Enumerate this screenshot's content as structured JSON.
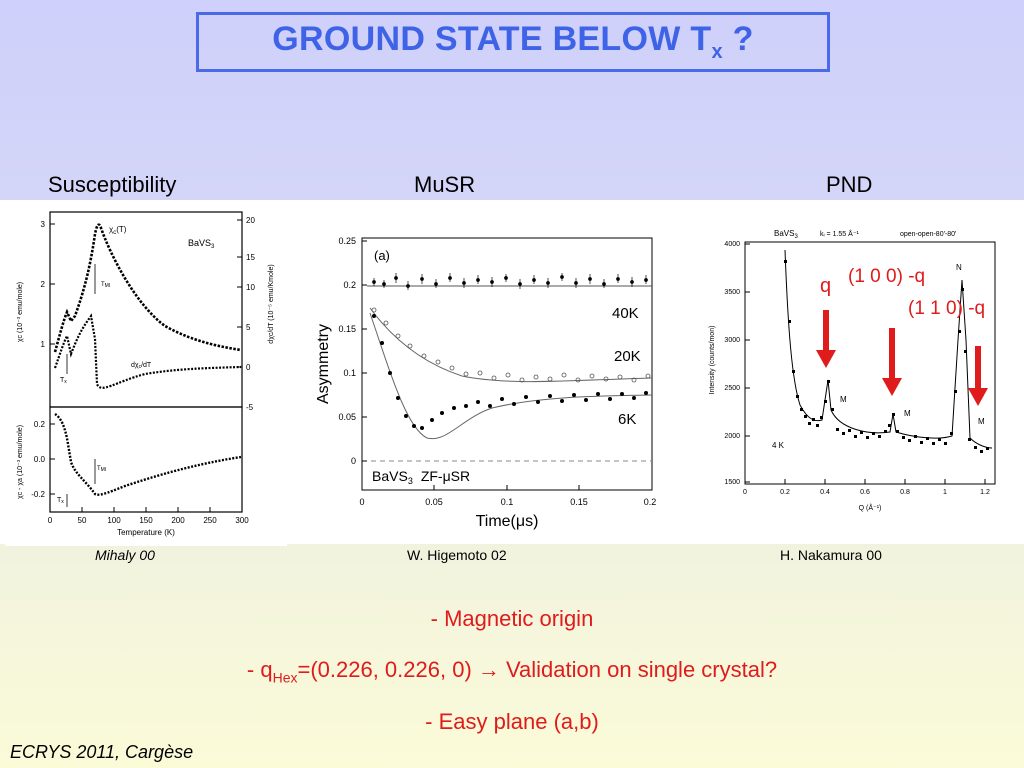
{
  "slide": {
    "title_main": "GROUND STATE BELOW T",
    "title_sub": "x",
    "title_end": " ?",
    "footer": "ECRYS 2011, Cargèse"
  },
  "columns": [
    {
      "heading": "Susceptibility",
      "credit": "Mihaly 00"
    },
    {
      "heading": "MuSR",
      "credit": "W. Higemoto 02"
    },
    {
      "heading": "PND",
      "credit": "H. Nakamura 00"
    }
  ],
  "bullets": {
    "b1": "- Magnetic origin",
    "b2_pre": "- q",
    "b2_sub": "Hex",
    "b2_post": "=(0.226, 0.226, 0) ",
    "b2_arrow": "→",
    "b2_end": " Validation on single crystal?",
    "b3": "- Easy plane (a,b)"
  },
  "colors": {
    "title": "#3f63e6",
    "bullets": "#e01b1b",
    "arrows": "#e01b1b"
  },
  "plots": {
    "susceptibility": {
      "compound": "BaVS",
      "compound_sub": "3",
      "curve_chi": "χ",
      "curve_chi_sub": "c",
      "curve_chi_post": "(T)",
      "curve_deriv": "dχ",
      "curve_deriv_sub": "c",
      "curve_deriv_post": "/dT",
      "label_tmi": "T",
      "label_tmi_sub": "MI",
      "label_tx": "T",
      "label_tx_sub": "x",
      "ylabel_left_top": "χc (10⁻³ emu/mole)",
      "ylabel_right_top": "dχc/dT (10⁻⁵ emu/Kmole)",
      "ylabel_left_bottom": "χc - χa (10⁻³ emu/mole)",
      "xlabel": "Temperature (K)",
      "x_ticks": [
        "0",
        "50",
        "100",
        "150",
        "200",
        "250",
        "300"
      ],
      "y_left_top_ticks": [
        "1",
        "2",
        "3"
      ],
      "y_right_top_ticks": [
        "-5",
        "0",
        "5",
        "10",
        "15",
        "20"
      ],
      "y_left_bottom_ticks": [
        "-0.2",
        "0.0",
        "0.2"
      ]
    },
    "musr": {
      "panel_label": "(a)",
      "ylabel": "Asymmetry",
      "xlabel": "Time(μs)",
      "x_ticks": [
        "0",
        "0.05",
        "0.1",
        "0.15",
        "0.2"
      ],
      "y_ticks": [
        "0",
        "0.05",
        "0.1",
        "0.15",
        "0.2",
        "0.25"
      ],
      "series_labels": [
        "40K",
        "20K",
        "6K"
      ],
      "compound": "BaVS",
      "compound_sub": "3",
      "experiment": "ZF-μSR"
    },
    "pnd": {
      "header_compound": "BaVS",
      "header_sub": "3",
      "header_wavelength": "kᵢ = 1.55 Å⁻¹",
      "header_collim": "open-open-80'-80'",
      "ylabel": "Intensity (counts/mon)",
      "xlabel": "Q (Å⁻¹)",
      "x_ticks": [
        "0",
        "0.2",
        "0.4",
        "0.6",
        "0.8",
        "1",
        "1.2"
      ],
      "y_ticks": [
        "1500",
        "2000",
        "2500",
        "3000",
        "3500",
        "4000"
      ],
      "temperature": "4 K",
      "annot_q": "q",
      "annot_100": "(1 0 0) -q",
      "annot_110": "(1 1 0) -q",
      "peak_M": "M",
      "peak_N": "N"
    }
  }
}
